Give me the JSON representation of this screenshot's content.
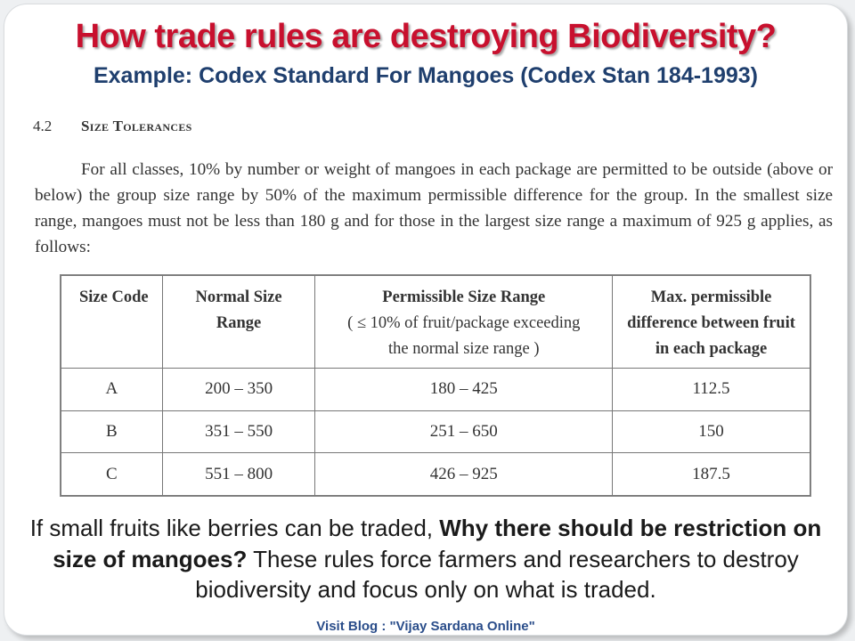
{
  "slide": {
    "title": "How trade rules are destroying Biodiversity?",
    "subtitle": "Example: Codex Standard For Mangoes (Codex Stan 184-1993)"
  },
  "document": {
    "section_number": "4.2",
    "section_title": "Size Tolerances",
    "paragraph": "For all classes, 10% by number or weight of mangoes in each package are permitted to be outside (above or below) the group size range by 50% of the maximum permissible difference for the group. In the smallest size range, mangoes must not be less than 180 g and for those in the largest size range a maximum of 925 g applies, as follows:"
  },
  "table": {
    "headers": {
      "size_code": "Size Code",
      "normal_range": "Normal Size Range",
      "permissible_range": "Permissible Size Range",
      "permissible_note": "( ≤ 10% of fruit/package exceeding the normal size range )",
      "max_difference": "Max. permissible difference between fruit in each package"
    },
    "rows": [
      {
        "code": "A",
        "normal": "200 – 350",
        "permissible": "180 – 425",
        "max_diff": "112.5"
      },
      {
        "code": "B",
        "normal": "351 – 550",
        "permissible": "251 – 650",
        "max_diff": "150"
      },
      {
        "code": "C",
        "normal": "551 – 800",
        "permissible": "426 – 925",
        "max_diff": "187.5"
      }
    ]
  },
  "bottom_text": {
    "part1": "If small fruits like berries can be traded, ",
    "bold": "Why there should be restriction on size of mangoes?",
    "part2": "  These rules force farmers and researchers to destroy biodiversity and focus only on what is traded."
  },
  "footer": "Visit Blog : \"Vijay Sardana Online\""
}
